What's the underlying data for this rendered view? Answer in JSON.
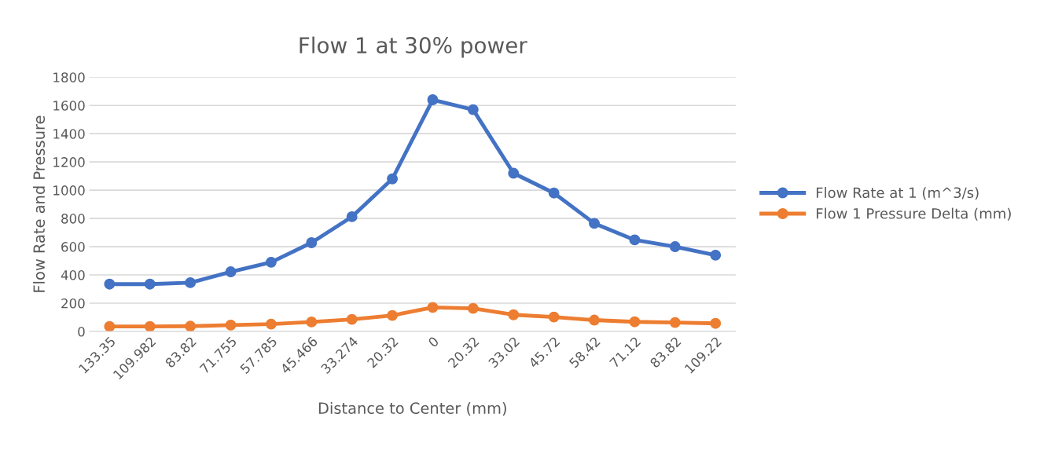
{
  "chart_data": {
    "type": "line",
    "title": "Flow 1 at 30% power",
    "xlabel": "Distance to Center (mm)",
    "ylabel": "Flow Rate and Pressure",
    "categories": [
      "133.35",
      "109.982",
      "83.82",
      "71.755",
      "57.785",
      "45.466",
      "33.274",
      "20.32",
      "0",
      "20.32",
      "33.02",
      "45.72",
      "58.42",
      "71.12",
      "83.82",
      "109.22"
    ],
    "series": [
      {
        "name": "Flow Rate at 1 (m^3/s)",
        "color": "#4472c4",
        "values": [
          335,
          335,
          345,
          422,
          490,
          628,
          812,
          1080,
          1640,
          1570,
          1120,
          980,
          765,
          648,
          600,
          540
        ]
      },
      {
        "name": "Flow 1 Pressure Delta (mm)",
        "color": "#ed7d31",
        "values": [
          35,
          35,
          37,
          45,
          52,
          67,
          85,
          113,
          170,
          163,
          118,
          102,
          80,
          68,
          63,
          57
        ]
      }
    ],
    "ylim": [
      0,
      1800
    ],
    "yticks": [
      0,
      200,
      400,
      600,
      800,
      1000,
      1200,
      1400,
      1600,
      1800
    ],
    "grid": "y",
    "legend": "right",
    "marker": "circle",
    "line_style": "solid"
  }
}
